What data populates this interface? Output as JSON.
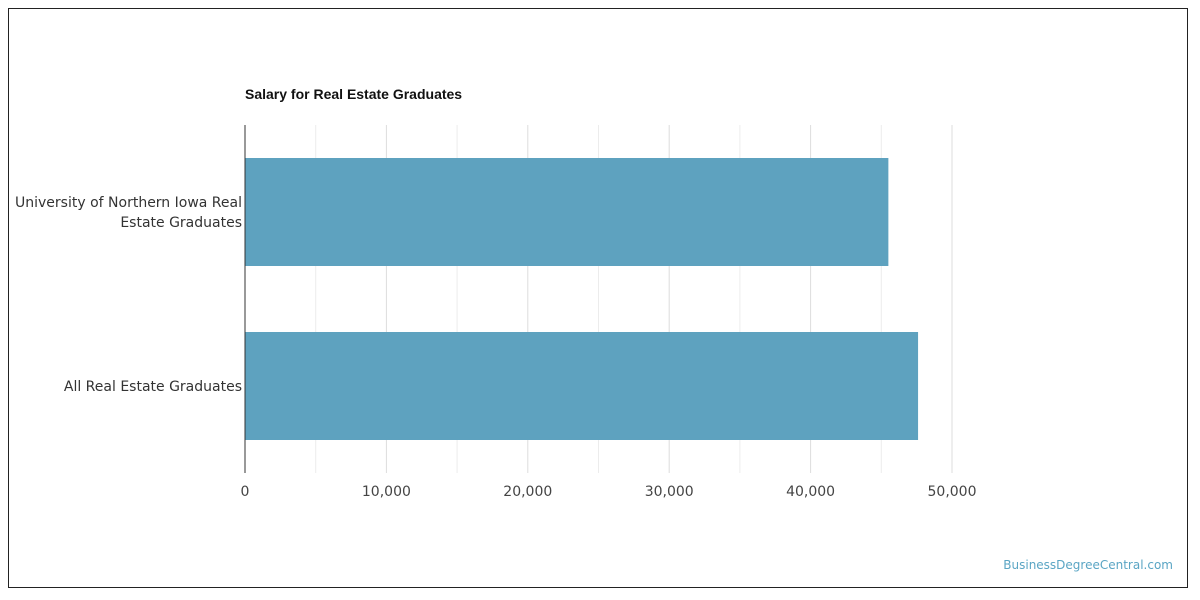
{
  "chart_data": {
    "type": "bar",
    "orientation": "horizontal",
    "title": "Salary for Real Estate Graduates",
    "categories": [
      [
        "University of Northern Iowa Real",
        "Estate Graduates"
      ],
      [
        "All Real Estate Graduates"
      ]
    ],
    "values": [
      45500,
      47600
    ],
    "xlim": [
      0,
      50000
    ],
    "x_ticks": [
      0,
      10000,
      20000,
      30000,
      40000,
      50000
    ],
    "x_tick_labels": [
      "0",
      "10,000",
      "20,000",
      "30,000",
      "40,000",
      "50,000"
    ],
    "xlabel": "",
    "ylabel": "",
    "grid": true,
    "legend": "none",
    "colors": {
      "bar": "#5ea2bf",
      "gridline": "#dddddd",
      "axis": "#333333"
    }
  },
  "watermark": "BusinessDegreeCentral.com"
}
